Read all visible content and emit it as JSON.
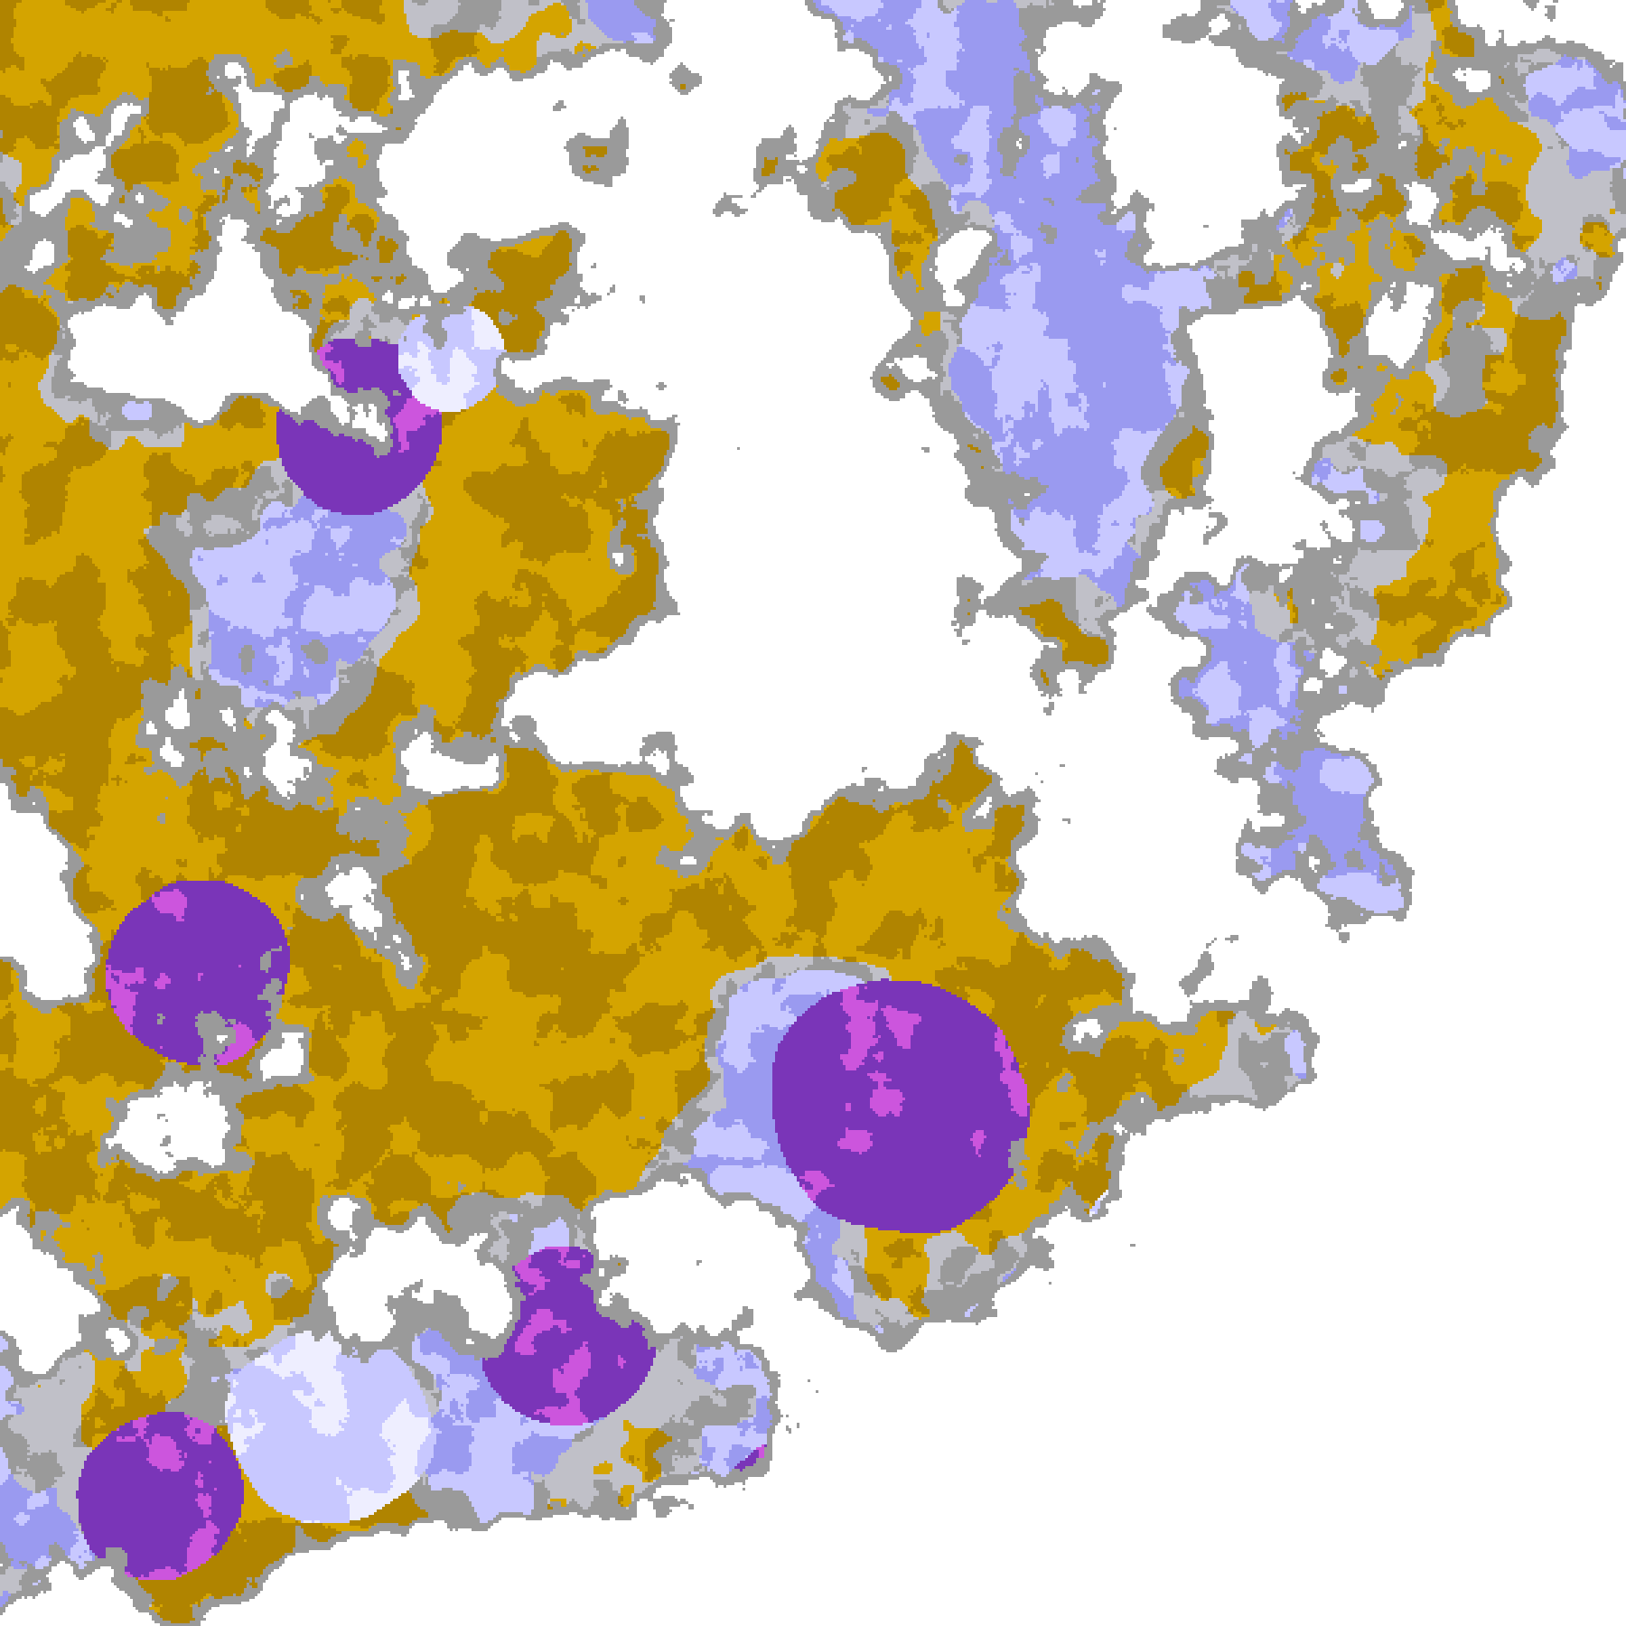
{
  "image": {
    "kind": "satellite cloud-classification composite",
    "background_color": "#ffffff",
    "palette": {
      "clear": "#ffffff",
      "low_cloud_gold": "#d4a400",
      "low_cloud_dark_gold": "#b08400",
      "thin_gray": "#9a9a9a",
      "light_gray": "#c0c0c8",
      "lavender": "#c8c8ff",
      "pale_lavender": "#eeeeff",
      "periwinkle": "#9a9af0",
      "purple": "#7a35b8",
      "magenta": "#cc55dd"
    }
  }
}
